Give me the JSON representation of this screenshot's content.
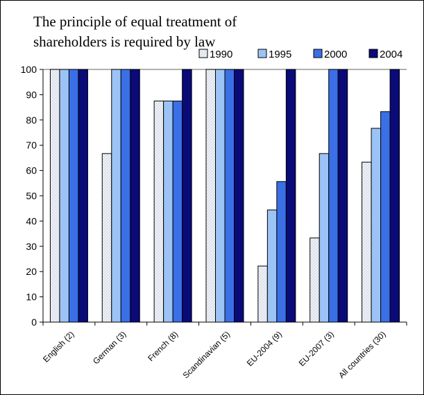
{
  "chart_data": {
    "type": "bar",
    "title": "The principle of equal treatment of shareholders is required by law",
    "xlabel": "",
    "ylabel": "",
    "ylim": [
      0,
      100
    ],
    "yticks": [
      "0",
      "10",
      "20",
      "30",
      "40",
      "50",
      "60",
      "70",
      "80",
      "90",
      "100"
    ],
    "grid": false,
    "legend_position": "top-right",
    "categories": [
      "English (2)",
      "German (3)",
      "French (8)",
      "Scandinavian (5)",
      "EU-2004 (9)",
      "EU-2007 (3)",
      "All countries (30)"
    ],
    "series": [
      {
        "name": "1990",
        "color": "#e8ecf4",
        "pattern": "hatched",
        "values": [
          100,
          66.7,
          87.5,
          100,
          22.2,
          33.3,
          63.3
        ]
      },
      {
        "name": "1995",
        "color": "#9cc3f5",
        "values": [
          100,
          100,
          87.5,
          100,
          44.4,
          66.7,
          76.7
        ]
      },
      {
        "name": "2000",
        "color": "#3a6fe6",
        "values": [
          100,
          100,
          87.5,
          100,
          55.6,
          100,
          83.3
        ]
      },
      {
        "name": "2004",
        "color": "#0a0a78",
        "values": [
          100,
          100,
          100,
          100,
          100,
          100,
          100
        ]
      }
    ]
  }
}
